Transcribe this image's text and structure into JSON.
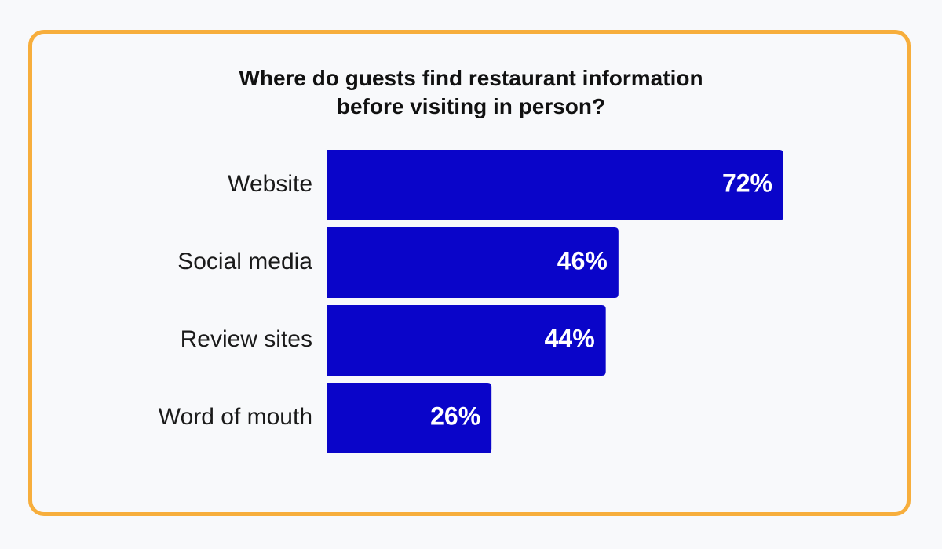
{
  "colors": {
    "frame": "#f7ae3c",
    "background": "#f8f9fb",
    "bar": "#0a05c9",
    "value_text": "#ffffff",
    "label_text": "#1a1a1a"
  },
  "chart_data": {
    "type": "bar",
    "orientation": "horizontal",
    "title_lines": [
      "Where do guests find restaurant information",
      "before visiting in person?"
    ],
    "categories": [
      "Website",
      "Social media",
      "Review sites",
      "Word of mouth"
    ],
    "values": [
      72,
      46,
      44,
      26
    ],
    "value_labels": [
      "72%",
      "46%",
      "44%",
      "26%"
    ],
    "unit": "%",
    "xlim": [
      0,
      72
    ],
    "grid": false,
    "legend": "none"
  }
}
